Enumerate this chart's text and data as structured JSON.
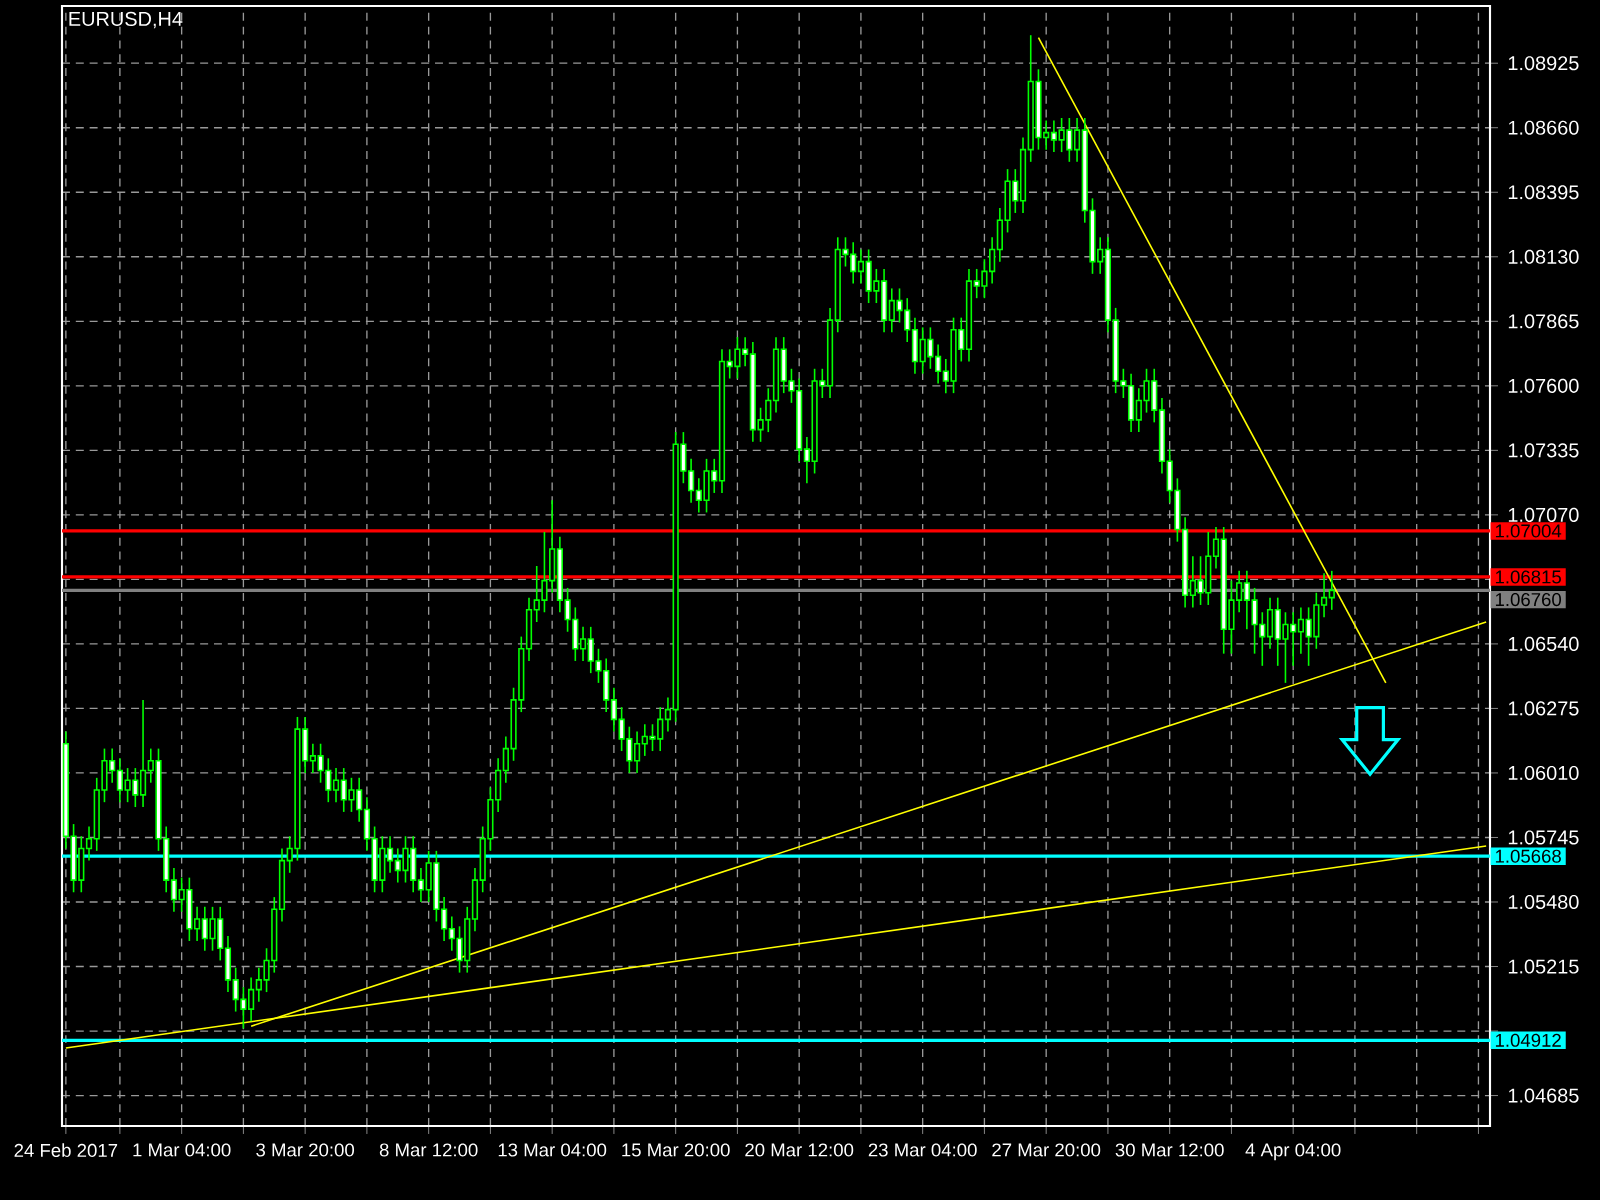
{
  "chart_data": {
    "type": "candlestick",
    "title": "EURUSD,H4",
    "color": "#00ff00",
    "categories": [
      "24 Feb 2017",
      null,
      null,
      null,
      null,
      null,
      null,
      null,
      null,
      null,
      null,
      null,
      null,
      null,
      null,
      "1 Mar 04:00",
      null,
      null,
      null,
      null,
      null,
      null,
      null,
      null,
      null,
      null,
      null,
      null,
      null,
      null,
      null,
      "3 Mar 20:00",
      null,
      null,
      null,
      null,
      null,
      null,
      null,
      null,
      null,
      null,
      null,
      null,
      null,
      null,
      null,
      "8 Mar 12:00",
      null,
      null,
      null,
      null,
      null,
      null,
      null,
      null,
      null,
      null,
      null,
      null,
      null,
      null,
      null,
      "13 Mar 04:00",
      null,
      null,
      null,
      null,
      null,
      null,
      null,
      null,
      null,
      null,
      null,
      null,
      null,
      null,
      null,
      "15 Mar 20:00",
      null,
      null,
      null,
      null,
      null,
      null,
      null,
      null,
      null,
      null,
      null,
      null,
      null,
      null,
      null,
      "20 Mar 12:00",
      null,
      null,
      null,
      null,
      null,
      null,
      null,
      null,
      null,
      null,
      null,
      null,
      null,
      null,
      null,
      "23 Mar 04:00",
      null,
      null,
      null,
      null,
      null,
      null,
      null,
      null,
      null,
      null,
      null,
      null,
      null,
      null,
      null,
      "27 Mar 20:00",
      null,
      null,
      null,
      null,
      null,
      null,
      null,
      null,
      null,
      null,
      null,
      null,
      null,
      null,
      null,
      "30 Mar 12:00",
      null,
      null,
      null,
      null,
      null,
      null,
      null,
      null,
      null,
      null,
      null,
      null,
      null,
      null,
      null,
      "4 Apr 04:00",
      null,
      null,
      null,
      null,
      null,
      null,
      null,
      null,
      null,
      null,
      null,
      null,
      null,
      null,
      null,
      null,
      null,
      null,
      null,
      null,
      null,
      null,
      null,
      null,
      null
    ],
    "ohlc": [
      [
        1.0613,
        1.0618,
        1.057,
        1.0575
      ],
      [
        1.0575,
        1.058,
        1.0552,
        1.0557
      ],
      [
        1.0557,
        1.0575,
        1.0552,
        1.057
      ],
      [
        1.057,
        1.0579,
        1.0565,
        1.0574
      ],
      [
        1.0574,
        1.0599,
        1.0569,
        1.0594
      ],
      [
        1.0594,
        1.0611,
        1.0589,
        1.0606
      ],
      [
        1.0606,
        1.0611,
        1.0597,
        1.0602
      ],
      [
        1.0602,
        1.0607,
        1.0589,
        1.0594
      ],
      [
        1.0594,
        1.0603,
        1.0589,
        1.0598
      ],
      [
        1.0598,
        1.0603,
        1.0587,
        1.0592
      ],
      [
        1.0592,
        1.0631,
        1.0587,
        1.0602
      ],
      [
        1.0602,
        1.0611,
        1.0597,
        1.0606
      ],
      [
        1.0606,
        1.0611,
        1.0569,
        1.0574
      ],
      [
        1.0574,
        1.0579,
        1.0552,
        1.0557
      ],
      [
        1.0557,
        1.0562,
        1.0544,
        1.0549
      ],
      [
        1.0549,
        1.0558,
        1.0544,
        1.0553
      ],
      [
        1.0553,
        1.0558,
        1.0532,
        1.0537
      ],
      [
        1.0537,
        1.0546,
        1.0532,
        1.0541
      ],
      [
        1.0541,
        1.0546,
        1.0528,
        1.0533
      ],
      [
        1.0533,
        1.0546,
        1.0528,
        1.0541
      ],
      [
        1.0541,
        1.0546,
        1.0524,
        1.0529
      ],
      [
        1.0529,
        1.0534,
        1.0511,
        1.0516
      ],
      [
        1.0516,
        1.0521,
        1.0503,
        1.0508
      ],
      [
        1.0508,
        1.0513,
        1.0496,
        1.0504
      ],
      [
        1.0504,
        1.0517,
        1.0499,
        1.0512
      ],
      [
        1.0512,
        1.0521,
        1.0507,
        1.0516
      ],
      [
        1.0516,
        1.0529,
        1.0511,
        1.0524
      ],
      [
        1.0524,
        1.055,
        1.0519,
        1.0545
      ],
      [
        1.0545,
        1.057,
        1.054,
        1.0565
      ],
      [
        1.0565,
        1.0575,
        1.056,
        1.057
      ],
      [
        1.057,
        1.0624,
        1.0565,
        1.0619
      ],
      [
        1.0619,
        1.0624,
        1.0601,
        1.0606
      ],
      [
        1.0606,
        1.0613,
        1.0601,
        1.0608
      ],
      [
        1.0608,
        1.0613,
        1.0597,
        1.0602
      ],
      [
        1.0602,
        1.0607,
        1.0589,
        1.0594
      ],
      [
        1.0594,
        1.0603,
        1.0589,
        1.0598
      ],
      [
        1.0598,
        1.0603,
        1.0585,
        1.059
      ],
      [
        1.059,
        1.0599,
        1.0585,
        1.0594
      ],
      [
        1.0594,
        1.0599,
        1.0581,
        1.0586
      ],
      [
        1.0586,
        1.0591,
        1.0569,
        1.0574
      ],
      [
        1.0574,
        1.0579,
        1.0552,
        1.0557
      ],
      [
        1.0557,
        1.0575,
        1.0552,
        1.057
      ],
      [
        1.057,
        1.0575,
        1.056,
        1.0565
      ],
      [
        1.0565,
        1.057,
        1.0556,
        1.0561
      ],
      [
        1.0561,
        1.0575,
        1.0556,
        1.057
      ],
      [
        1.057,
        1.0575,
        1.0552,
        1.0557
      ],
      [
        1.0557,
        1.0562,
        1.0548,
        1.0553
      ],
      [
        1.0553,
        1.0569,
        1.0548,
        1.0564
      ],
      [
        1.0564,
        1.0569,
        1.054,
        1.0545
      ],
      [
        1.0545,
        1.055,
        1.0532,
        1.0537
      ],
      [
        1.0537,
        1.0542,
        1.0528,
        1.0533
      ],
      [
        1.0533,
        1.0538,
        1.0519,
        1.0524
      ],
      [
        1.0524,
        1.0546,
        1.0519,
        1.0541
      ],
      [
        1.0541,
        1.0562,
        1.0536,
        1.0557
      ],
      [
        1.0557,
        1.0579,
        1.0552,
        1.0574
      ],
      [
        1.0574,
        1.0595,
        1.0569,
        1.059
      ],
      [
        1.059,
        1.0607,
        1.0585,
        1.0602
      ],
      [
        1.0602,
        1.0616,
        1.0597,
        1.0611
      ],
      [
        1.0611,
        1.0636,
        1.0606,
        1.0631
      ],
      [
        1.0631,
        1.0657,
        1.0626,
        1.0652
      ],
      [
        1.0652,
        1.0673,
        1.0647,
        1.0668
      ],
      [
        1.0668,
        1.0686,
        1.0663,
        1.0672
      ],
      [
        1.0672,
        1.07,
        1.0667,
        1.068
      ],
      [
        1.068,
        1.0713,
        1.0675,
        1.0693
      ],
      [
        1.0693,
        1.0698,
        1.0667,
        1.0672
      ],
      [
        1.0672,
        1.0677,
        1.0659,
        1.0664
      ],
      [
        1.0664,
        1.0669,
        1.0647,
        1.0652
      ],
      [
        1.0652,
        1.0661,
        1.0647,
        1.0656
      ],
      [
        1.0656,
        1.0661,
        1.0642,
        1.0647
      ],
      [
        1.0647,
        1.0652,
        1.0638,
        1.0643
      ],
      [
        1.0643,
        1.0648,
        1.0626,
        1.0631
      ],
      [
        1.0631,
        1.0636,
        1.0618,
        1.0623
      ],
      [
        1.0623,
        1.0628,
        1.061,
        1.0615
      ],
      [
        1.0615,
        1.062,
        1.0601,
        1.0606
      ],
      [
        1.0606,
        1.0618,
        1.0601,
        1.0613
      ],
      [
        1.0613,
        1.0621,
        1.0608,
        1.0616
      ],
      [
        1.0616,
        1.0621,
        1.061,
        1.0615
      ],
      [
        1.0615,
        1.0628,
        1.061,
        1.0623
      ],
      [
        1.0623,
        1.0632,
        1.0618,
        1.0627
      ],
      [
        1.0627,
        1.0741,
        1.0622,
        1.0736
      ],
      [
        1.0736,
        1.0741,
        1.072,
        1.0725
      ],
      [
        1.0725,
        1.073,
        1.0712,
        1.0717
      ],
      [
        1.0717,
        1.0722,
        1.0708,
        1.0713
      ],
      [
        1.0713,
        1.073,
        1.0708,
        1.0725
      ],
      [
        1.0725,
        1.073,
        1.0716,
        1.0721
      ],
      [
        1.0721,
        1.0775,
        1.0716,
        1.077
      ],
      [
        1.077,
        1.0775,
        1.0763,
        1.0768
      ],
      [
        1.0768,
        1.078,
        1.0763,
        1.0775
      ],
      [
        1.0775,
        1.078,
        1.0768,
        1.0773
      ],
      [
        1.0773,
        1.0778,
        1.0737,
        1.0742
      ],
      [
        1.0742,
        1.0751,
        1.0737,
        1.0746
      ],
      [
        1.0746,
        1.0759,
        1.0741,
        1.0754
      ],
      [
        1.0754,
        1.078,
        1.0749,
        1.0775
      ],
      [
        1.0775,
        1.078,
        1.0757,
        1.0762
      ],
      [
        1.0762,
        1.0767,
        1.0753,
        1.0758
      ],
      [
        1.0758,
        1.0763,
        1.0729,
        1.0734
      ],
      [
        1.0734,
        1.0739,
        1.072,
        1.0729
      ],
      [
        1.0729,
        1.0767,
        1.0724,
        1.0762
      ],
      [
        1.0762,
        1.0767,
        1.0755,
        1.076
      ],
      [
        1.076,
        1.0792,
        1.0755,
        1.0787
      ],
      [
        1.0787,
        1.0821,
        1.0782,
        1.0816
      ],
      [
        1.0816,
        1.0821,
        1.0809,
        1.0814
      ],
      [
        1.0814,
        1.0819,
        1.0802,
        1.0807
      ],
      [
        1.0807,
        1.0816,
        1.0802,
        1.0811
      ],
      [
        1.0811,
        1.0816,
        1.0794,
        1.0799
      ],
      [
        1.0799,
        1.0808,
        1.0794,
        1.0803
      ],
      [
        1.0803,
        1.0808,
        1.0782,
        1.0787
      ],
      [
        1.0787,
        1.08,
        1.0782,
        1.0795
      ],
      [
        1.0795,
        1.08,
        1.0786,
        1.0791
      ],
      [
        1.0791,
        1.0796,
        1.0778,
        1.0783
      ],
      [
        1.0783,
        1.0788,
        1.0765,
        1.077
      ],
      [
        1.077,
        1.0784,
        1.0765,
        1.0779
      ],
      [
        1.0779,
        1.0784,
        1.0767,
        1.0772
      ],
      [
        1.0772,
        1.0777,
        1.0761,
        1.0766
      ],
      [
        1.0766,
        1.0771,
        1.0757,
        1.0762
      ],
      [
        1.0762,
        1.0788,
        1.0757,
        1.0783
      ],
      [
        1.0783,
        1.0788,
        1.077,
        1.0775
      ],
      [
        1.0775,
        1.0808,
        1.077,
        1.0803
      ],
      [
        1.0803,
        1.0808,
        1.0796,
        1.0801
      ],
      [
        1.0801,
        1.0812,
        1.0796,
        1.0807
      ],
      [
        1.0807,
        1.0821,
        1.0802,
        1.0816
      ],
      [
        1.0816,
        1.0833,
        1.0811,
        1.0828
      ],
      [
        1.0828,
        1.0849,
        1.0823,
        1.0844
      ],
      [
        1.0844,
        1.0849,
        1.0831,
        1.0836
      ],
      [
        1.0836,
        1.0862,
        1.0831,
        1.0857
      ],
      [
        1.0857,
        1.0904,
        1.0852,
        1.0885
      ],
      [
        1.0885,
        1.089,
        1.0857,
        1.0862
      ],
      [
        1.0862,
        1.0869,
        1.0857,
        1.0864
      ],
      [
        1.0864,
        1.0869,
        1.0856,
        1.0861
      ],
      [
        1.0861,
        1.087,
        1.0856,
        1.0865
      ],
      [
        1.0865,
        1.087,
        1.0852,
        1.0857
      ],
      [
        1.0857,
        1.087,
        1.0852,
        1.0865
      ],
      [
        1.0865,
        1.087,
        1.0827,
        1.0832
      ],
      [
        1.0832,
        1.0837,
        1.0806,
        1.0811
      ],
      [
        1.0811,
        1.0821,
        1.0806,
        1.0816
      ],
      [
        1.0816,
        1.0821,
        1.0782,
        1.0787
      ],
      [
        1.0787,
        1.0792,
        1.0757,
        1.0762
      ],
      [
        1.0762,
        1.0767,
        1.0755,
        1.076
      ],
      [
        1.076,
        1.0765,
        1.0741,
        1.0746
      ],
      [
        1.0746,
        1.0759,
        1.0741,
        1.0754
      ],
      [
        1.0754,
        1.0767,
        1.0749,
        1.0762
      ],
      [
        1.0762,
        1.0767,
        1.0745,
        1.075
      ],
      [
        1.075,
        1.0755,
        1.0724,
        1.0729
      ],
      [
        1.0729,
        1.0734,
        1.0712,
        1.0717
      ],
      [
        1.0717,
        1.0722,
        1.0696,
        1.0701
      ],
      [
        1.0701,
        1.0706,
        1.0669,
        1.0674
      ],
      [
        1.0674,
        1.069,
        1.0669,
        1.068
      ],
      [
        1.068,
        1.069,
        1.067,
        1.0675
      ],
      [
        1.0675,
        1.07,
        1.067,
        1.069
      ],
      [
        1.069,
        1.0702,
        1.0685,
        1.0697
      ],
      [
        1.0697,
        1.0702,
        1.065,
        1.066
      ],
      [
        1.066,
        1.068,
        1.065,
        1.0672
      ],
      [
        1.0672,
        1.0684,
        1.0667,
        1.0679
      ],
      [
        1.0679,
        1.0684,
        1.066,
        1.0672
      ],
      [
        1.0672,
        1.0677,
        1.065,
        1.0662
      ],
      [
        1.0662,
        1.0667,
        1.0645,
        1.0657
      ],
      [
        1.0657,
        1.0673,
        1.0652,
        1.0668
      ],
      [
        1.0668,
        1.0673,
        1.0645,
        1.0656
      ],
      [
        1.0656,
        1.0667,
        1.0638,
        1.0662
      ],
      [
        1.0662,
        1.0667,
        1.0645,
        1.0659
      ],
      [
        1.0659,
        1.0669,
        1.065,
        1.0664
      ],
      [
        1.0664,
        1.0669,
        1.0645,
        1.0657
      ],
      [
        1.0657,
        1.0675,
        1.0652,
        1.067
      ],
      [
        1.067,
        1.0683,
        1.0665,
        1.0673
      ],
      [
        1.0673,
        1.0684,
        1.0668,
        1.0676
      ],
      null,
      null,
      null,
      null,
      null,
      null,
      null,
      null,
      null,
      null,
      null,
      null,
      null,
      null,
      null,
      null,
      null,
      null,
      null,
      null
    ],
    "series": [
      {
        "type": "line",
        "color": "#ffff00",
        "values": [
          null,
          null,
          null,
          null,
          null,
          null,
          null,
          null,
          null,
          null,
          null,
          null,
          null,
          null,
          null,
          null,
          null,
          null,
          null,
          null,
          null,
          null,
          null,
          null,
          1.0497,
          null,
          null,
          null,
          null,
          null,
          null,
          null,
          null,
          null,
          null,
          null,
          null,
          null,
          null,
          null,
          null,
          null,
          null,
          null,
          null,
          null,
          null,
          null,
          null,
          null,
          null,
          null,
          null,
          null,
          null,
          null,
          null,
          null,
          null,
          null,
          null,
          null,
          null,
          null,
          null,
          null,
          null,
          null,
          null,
          null,
          null,
          null,
          null,
          null,
          null,
          null,
          null,
          null,
          null,
          null,
          null,
          null,
          null,
          null,
          null,
          null,
          null,
          null,
          null,
          null,
          null,
          null,
          null,
          null,
          null,
          null,
          null,
          null,
          null,
          null,
          null,
          null,
          null,
          null,
          null,
          null,
          null,
          null,
          null,
          null,
          null,
          null,
          null,
          null,
          null,
          null,
          null,
          null,
          null,
          null,
          null,
          null,
          null,
          null,
          null,
          null,
          null,
          null,
          null,
          null,
          null,
          null,
          null,
          null,
          null,
          null,
          null,
          null,
          null,
          null,
          null,
          null,
          null,
          null,
          null,
          null,
          null,
          null,
          null,
          null,
          null,
          null,
          null,
          null,
          null,
          null,
          null,
          null,
          null,
          null,
          null,
          null,
          null,
          null,
          null,
          null,
          null,
          null,
          null,
          null,
          null,
          null,
          null,
          null,
          null,
          null,
          null,
          null,
          null,
          null,
          null,
          null,
          null,
          null,
          1.0663
        ]
      },
      {
        "type": "line",
        "color": "#ffff00",
        "values": [
          1.0488,
          null,
          null,
          null,
          null,
          null,
          null,
          null,
          null,
          null,
          null,
          null,
          null,
          null,
          null,
          null,
          null,
          null,
          null,
          null,
          null,
          null,
          null,
          null,
          null,
          null,
          null,
          null,
          null,
          null,
          null,
          null,
          null,
          null,
          null,
          null,
          null,
          null,
          null,
          null,
          null,
          null,
          null,
          null,
          null,
          null,
          null,
          null,
          null,
          null,
          null,
          null,
          null,
          null,
          null,
          null,
          null,
          null,
          null,
          null,
          null,
          null,
          null,
          null,
          null,
          null,
          null,
          null,
          null,
          null,
          null,
          null,
          null,
          null,
          null,
          null,
          null,
          null,
          null,
          null,
          null,
          null,
          null,
          null,
          null,
          null,
          null,
          null,
          null,
          null,
          null,
          null,
          null,
          null,
          null,
          null,
          null,
          null,
          null,
          null,
          null,
          null,
          null,
          null,
          null,
          null,
          null,
          null,
          null,
          null,
          null,
          null,
          null,
          null,
          null,
          null,
          null,
          null,
          null,
          null,
          null,
          null,
          null,
          null,
          null,
          null,
          null,
          null,
          null,
          null,
          null,
          null,
          null,
          null,
          null,
          null,
          null,
          null,
          null,
          null,
          null,
          null,
          null,
          null,
          null,
          null,
          null,
          null,
          null,
          null,
          null,
          null,
          null,
          null,
          null,
          null,
          null,
          null,
          null,
          null,
          null,
          null,
          null,
          null,
          null,
          null,
          null,
          null,
          null,
          null,
          null,
          null,
          null,
          null,
          null,
          null,
          null,
          null,
          null,
          null,
          null,
          null,
          null,
          null,
          1.0571
        ]
      },
      {
        "type": "line",
        "color": "#ffff00",
        "values": [
          null,
          null,
          null,
          null,
          null,
          null,
          null,
          null,
          null,
          null,
          null,
          null,
          null,
          null,
          null,
          null,
          null,
          null,
          null,
          null,
          null,
          null,
          null,
          null,
          null,
          null,
          null,
          null,
          null,
          null,
          null,
          null,
          null,
          null,
          null,
          null,
          null,
          null,
          null,
          null,
          null,
          null,
          null,
          null,
          null,
          null,
          null,
          null,
          null,
          null,
          null,
          null,
          null,
          null,
          null,
          null,
          null,
          null,
          null,
          null,
          null,
          null,
          null,
          null,
          null,
          null,
          null,
          null,
          null,
          null,
          null,
          null,
          null,
          null,
          null,
          null,
          null,
          null,
          null,
          null,
          null,
          null,
          null,
          null,
          null,
          null,
          null,
          null,
          null,
          null,
          null,
          null,
          null,
          null,
          null,
          null,
          null,
          null,
          null,
          null,
          null,
          null,
          null,
          null,
          null,
          null,
          null,
          null,
          null,
          null,
          null,
          null,
          null,
          null,
          null,
          null,
          null,
          null,
          null,
          null,
          null,
          null,
          null,
          null,
          null,
          null,
          1.0903,
          null,
          null,
          null,
          null,
          null,
          null,
          null,
          null,
          null,
          null,
          null,
          null,
          null,
          null,
          null,
          null,
          null,
          null,
          null,
          null,
          null,
          null,
          null,
          null,
          null,
          null,
          null,
          null,
          null,
          null,
          null,
          null,
          null,
          null,
          null,
          null,
          null,
          null,
          null,
          null,
          null,
          null,
          null,
          null,
          1.0638,
          null,
          null,
          null,
          null,
          null,
          null,
          null,
          null,
          null,
          null,
          null,
          null,
          null
        ]
      }
    ],
    "ylim": [
      1.0456,
      1.0916
    ],
    "yticks": [
      {
        "value": 1.08925,
        "label": "1.08925"
      },
      {
        "value": 1.0866,
        "label": "1.08660"
      },
      {
        "value": 1.08395,
        "label": "1.08395"
      },
      {
        "value": 1.0813,
        "label": "1.08130"
      },
      {
        "value": 1.07865,
        "label": "1.07865"
      },
      {
        "value": 1.076,
        "label": "1.07600"
      },
      {
        "value": 1.07335,
        "label": "1.07335"
      },
      {
        "value": 1.0707,
        "label": "1.07070"
      },
      {
        "value": 1.06805,
        "label": null
      },
      {
        "value": 1.0654,
        "label": "1.06540"
      },
      {
        "value": 1.06275,
        "label": "1.06275"
      },
      {
        "value": 1.0601,
        "label": "1.06010"
      },
      {
        "value": 1.05745,
        "label": "1.05745"
      },
      {
        "value": 1.0548,
        "label": "1.05480"
      },
      {
        "value": 1.05215,
        "label": "1.05215"
      },
      {
        "value": 1.0495,
        "label": null
      },
      {
        "value": 1.04685,
        "label": "1.04685"
      }
    ],
    "ref_lines": [
      {
        "axis": "y",
        "value": 1.07004,
        "label": "1.07004",
        "color": "#ff0000"
      },
      {
        "axis": "y",
        "value": 1.0676,
        "label": "1.06760",
        "color": "#808080"
      },
      {
        "axis": "y",
        "value": 1.06815,
        "label": "1.06815",
        "color": "#ff0000"
      },
      {
        "axis": "y",
        "value": 1.05668,
        "label": "1.05668",
        "color": "#00ffff"
      },
      {
        "axis": "y",
        "value": 1.04912,
        "label": "1.04912",
        "color": "#00ffff"
      }
    ],
    "grid": true
  }
}
